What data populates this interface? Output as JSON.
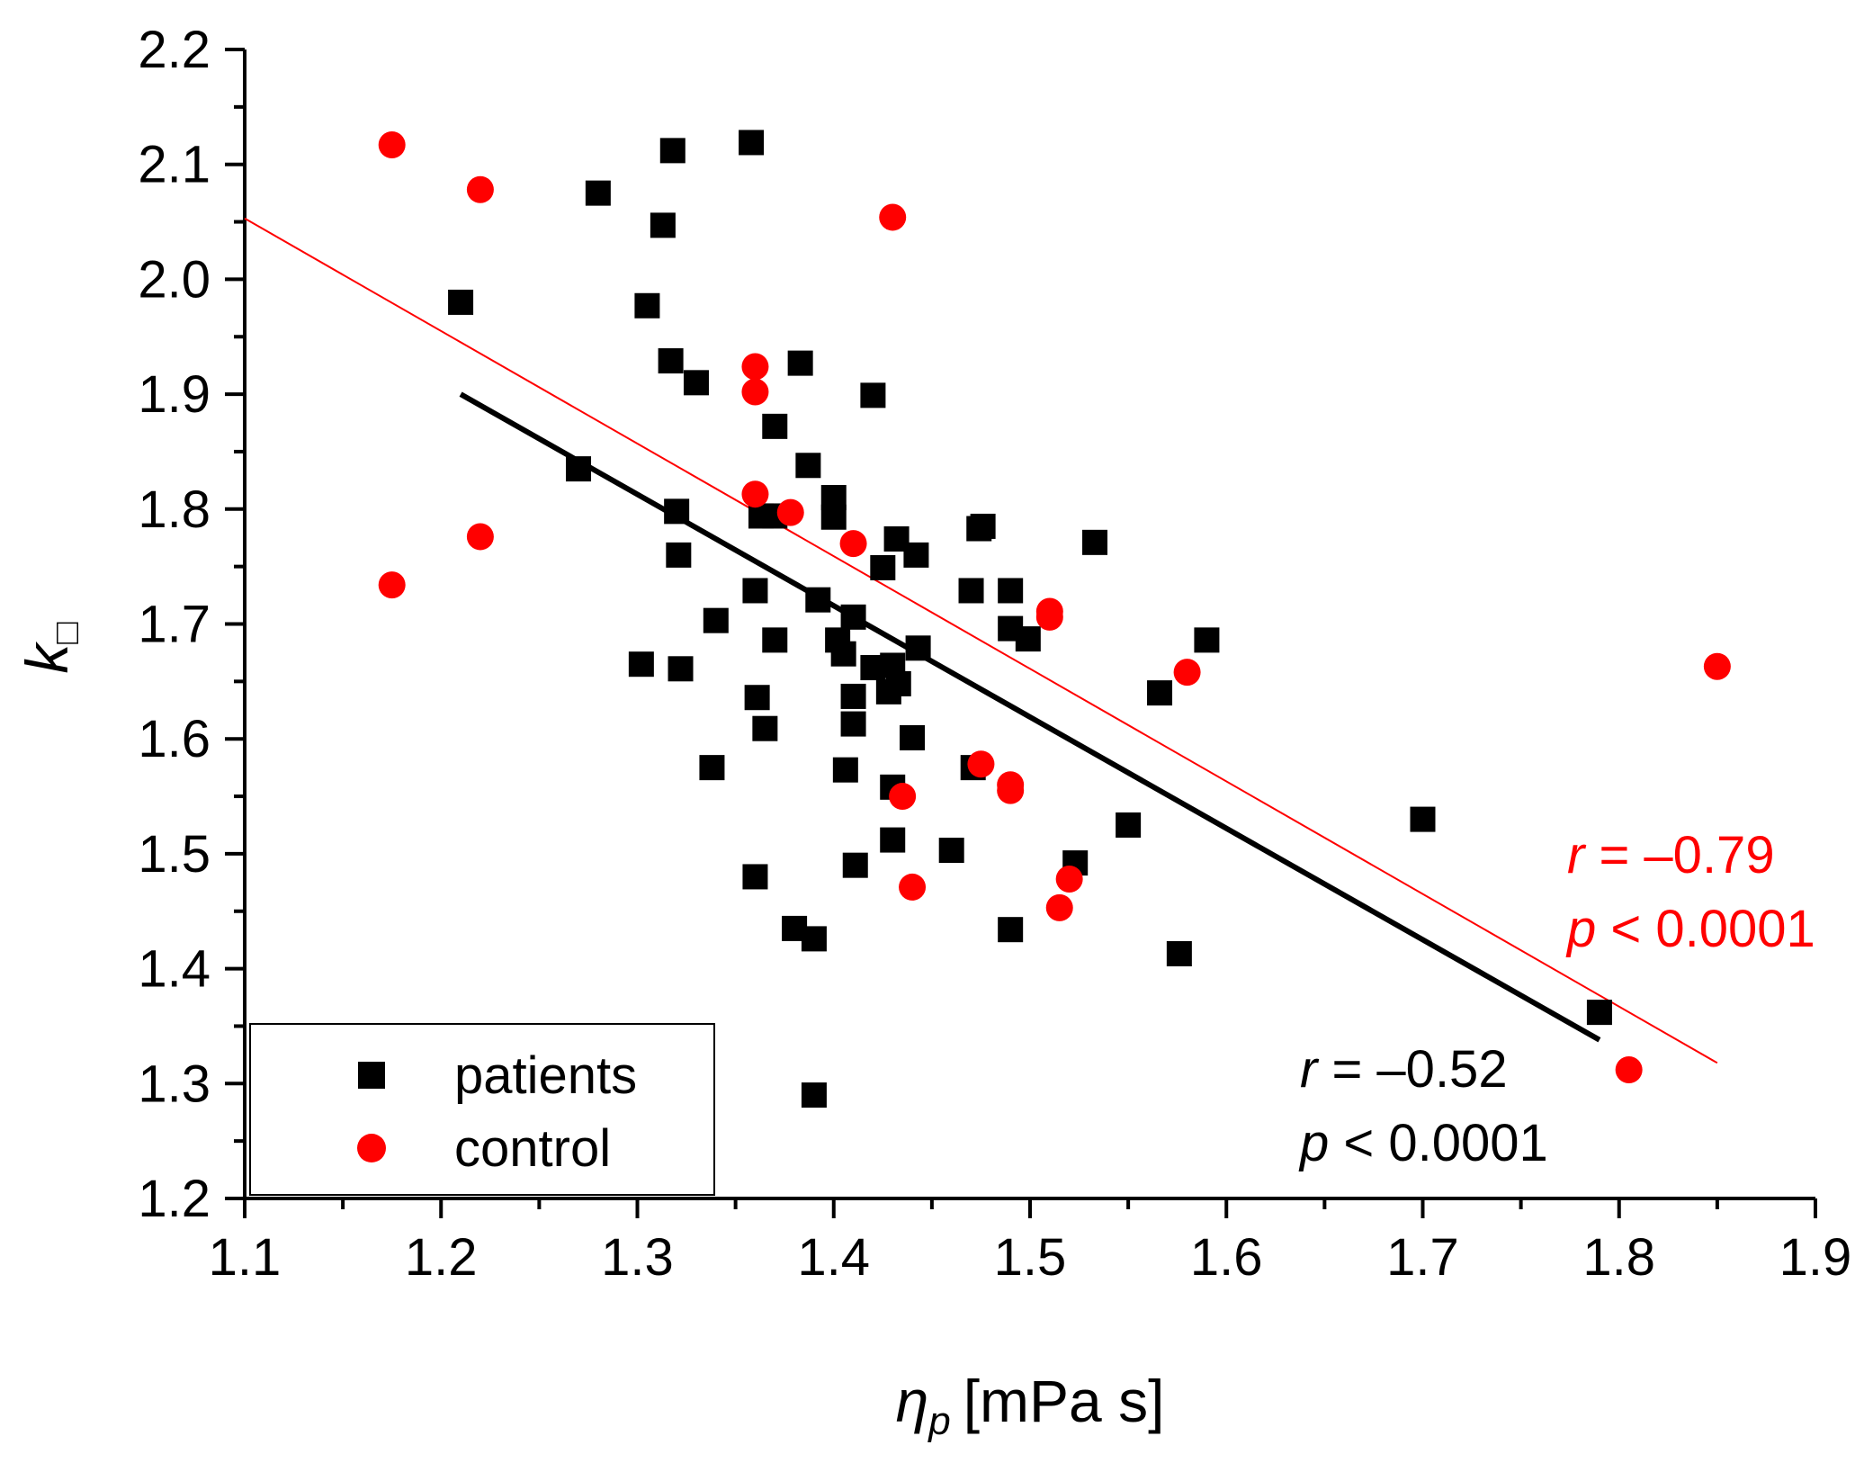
{
  "chart_data": {
    "type": "scatter",
    "xlabel": {
      "symbol": "η",
      "subscript": "p",
      "unit": "[mPa s]"
    },
    "ylabel": {
      "symbol": "k",
      "subscript": "□"
    },
    "xlim": [
      1.1,
      1.9
    ],
    "ylim": [
      1.2,
      2.2
    ],
    "xticks": [
      1.1,
      1.2,
      1.3,
      1.4,
      1.5,
      1.6,
      1.7,
      1.8,
      1.9
    ],
    "yticks": [
      1.2,
      1.3,
      1.4,
      1.5,
      1.6,
      1.7,
      1.8,
      1.9,
      2.0,
      2.1,
      2.2
    ],
    "xtick_labels": [
      "1.1",
      "1.2",
      "1.3",
      "1.4",
      "1.5",
      "1.6",
      "1.7",
      "1.8",
      "1.9"
    ],
    "ytick_labels": [
      "1.2",
      "1.3",
      "1.4",
      "1.5",
      "1.6",
      "1.7",
      "1.8",
      "1.9",
      "2.0",
      "2.1",
      "2.2"
    ],
    "legend": {
      "position": "bottom-left"
    },
    "series": [
      {
        "name": "patients",
        "marker": "square",
        "color": "#000000",
        "points": [
          [
            1.21,
            1.98
          ],
          [
            1.27,
            1.835
          ],
          [
            1.28,
            2.075
          ],
          [
            1.302,
            1.665
          ],
          [
            1.305,
            1.977
          ],
          [
            1.313,
            2.047
          ],
          [
            1.317,
            1.929
          ],
          [
            1.318,
            2.112
          ],
          [
            1.32,
            1.798
          ],
          [
            1.321,
            1.76
          ],
          [
            1.322,
            1.661
          ],
          [
            1.33,
            1.91
          ],
          [
            1.338,
            1.575
          ],
          [
            1.34,
            1.703
          ],
          [
            1.358,
            2.119
          ],
          [
            1.36,
            1.729
          ],
          [
            1.36,
            1.48
          ],
          [
            1.361,
            1.636
          ],
          [
            1.363,
            1.794
          ],
          [
            1.365,
            1.609
          ],
          [
            1.37,
            1.794
          ],
          [
            1.37,
            1.686
          ],
          [
            1.37,
            1.872
          ],
          [
            1.38,
            1.435
          ],
          [
            1.383,
            1.927
          ],
          [
            1.387,
            1.838
          ],
          [
            1.39,
            1.426
          ],
          [
            1.39,
            1.29
          ],
          [
            1.392,
            1.721
          ],
          [
            1.4,
            1.81
          ],
          [
            1.4,
            1.793
          ],
          [
            1.402,
            1.686
          ],
          [
            1.405,
            1.674
          ],
          [
            1.406,
            1.573
          ],
          [
            1.41,
            1.706
          ],
          [
            1.41,
            1.637
          ],
          [
            1.41,
            1.613
          ],
          [
            1.411,
            1.49
          ],
          [
            1.42,
            1.899
          ],
          [
            1.42,
            1.662
          ],
          [
            1.425,
            1.749
          ],
          [
            1.428,
            1.641
          ],
          [
            1.43,
            1.664
          ],
          [
            1.43,
            1.558
          ],
          [
            1.43,
            1.512
          ],
          [
            1.432,
            1.774
          ],
          [
            1.433,
            1.648
          ],
          [
            1.44,
            1.601
          ],
          [
            1.442,
            1.76
          ],
          [
            1.443,
            1.679
          ],
          [
            1.46,
            1.503
          ],
          [
            1.47,
            1.729
          ],
          [
            1.471,
            1.575
          ],
          [
            1.474,
            1.783
          ],
          [
            1.476,
            1.785
          ],
          [
            1.49,
            1.729
          ],
          [
            1.49,
            1.696
          ],
          [
            1.49,
            1.434
          ],
          [
            1.499,
            1.687
          ],
          [
            1.523,
            1.492
          ],
          [
            1.533,
            1.771
          ],
          [
            1.55,
            1.525
          ],
          [
            1.566,
            1.64
          ],
          [
            1.576,
            1.413
          ],
          [
            1.59,
            1.686
          ],
          [
            1.7,
            1.53
          ],
          [
            1.79,
            1.362
          ]
        ]
      },
      {
        "name": "control",
        "marker": "circle",
        "color": "#ff0000",
        "points": [
          [
            1.175,
            2.117
          ],
          [
            1.175,
            1.734
          ],
          [
            1.22,
            2.078
          ],
          [
            1.22,
            1.776
          ],
          [
            1.36,
            1.924
          ],
          [
            1.36,
            1.902
          ],
          [
            1.36,
            1.813
          ],
          [
            1.378,
            1.797
          ],
          [
            1.41,
            1.77
          ],
          [
            1.43,
            2.054
          ],
          [
            1.435,
            1.55
          ],
          [
            1.44,
            1.471
          ],
          [
            1.475,
            1.578
          ],
          [
            1.49,
            1.56
          ],
          [
            1.49,
            1.555
          ],
          [
            1.51,
            1.711
          ],
          [
            1.51,
            1.706
          ],
          [
            1.515,
            1.453
          ],
          [
            1.52,
            1.478
          ],
          [
            1.58,
            1.658
          ],
          [
            1.805,
            1.312
          ],
          [
            1.85,
            1.663
          ]
        ]
      }
    ],
    "fit_lines": [
      {
        "name": "patients-fit",
        "color": "#000000",
        "x": [
          1.21,
          1.79
        ],
        "y": [
          1.9,
          1.338
        ]
      },
      {
        "name": "control-fit",
        "color": "#ff0000",
        "x": [
          1.1,
          1.85
        ],
        "y": [
          2.053,
          1.318
        ]
      }
    ],
    "annotations": [
      {
        "name": "patients-stats",
        "color": "#000000",
        "r_label": "r",
        "r_value": " = –0.52",
        "p_label": "p",
        "p_value": " < 0.0001"
      },
      {
        "name": "control-stats",
        "color": "#ff0000",
        "r_label": "r",
        "r_value": " = –0.79",
        "p_label": "p",
        "p_value": " < 0.0001"
      }
    ]
  }
}
